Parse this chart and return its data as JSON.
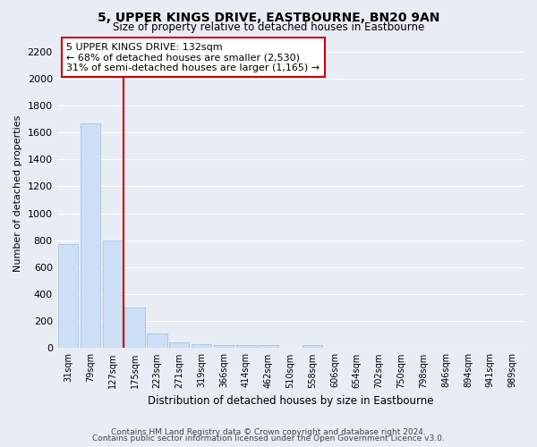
{
  "title": "5, UPPER KINGS DRIVE, EASTBOURNE, BN20 9AN",
  "subtitle": "Size of property relative to detached houses in Eastbourne",
  "xlabel": "Distribution of detached houses by size in Eastbourne",
  "ylabel": "Number of detached properties",
  "footer_line1": "Contains HM Land Registry data © Crown copyright and database right 2024.",
  "footer_line2": "Contains public sector information licensed under the Open Government Licence v3.0.",
  "categories": [
    "31sqm",
    "79sqm",
    "127sqm",
    "175sqm",
    "223sqm",
    "271sqm",
    "319sqm",
    "366sqm",
    "414sqm",
    "462sqm",
    "510sqm",
    "558sqm",
    "606sqm",
    "654sqm",
    "702sqm",
    "750sqm",
    "798sqm",
    "846sqm",
    "894sqm",
    "941sqm",
    "989sqm"
  ],
  "values": [
    770,
    1670,
    800,
    300,
    110,
    45,
    32,
    25,
    20,
    20,
    0,
    20,
    0,
    0,
    0,
    0,
    0,
    0,
    0,
    0,
    0
  ],
  "bar_color": "#ccdff5",
  "bar_edge_color": "#aac4e0",
  "ylim": [
    0,
    2300
  ],
  "yticks": [
    0,
    200,
    400,
    600,
    800,
    1000,
    1200,
    1400,
    1600,
    1800,
    2000,
    2200
  ],
  "property_label": "5 UPPER KINGS DRIVE: 132sqm",
  "annotation_line1": "← 68% of detached houses are smaller (2,530)",
  "annotation_line2": "31% of semi-detached houses are larger (1,165) →",
  "red_line_x": 2.5,
  "background_color": "#e8ecf5",
  "plot_bg_color": "#e8ecf5",
  "grid_color": "#ffffff",
  "annotation_box_color": "#ffffff",
  "annotation_box_edge": "#cc0000",
  "red_line_color": "#cc0000"
}
